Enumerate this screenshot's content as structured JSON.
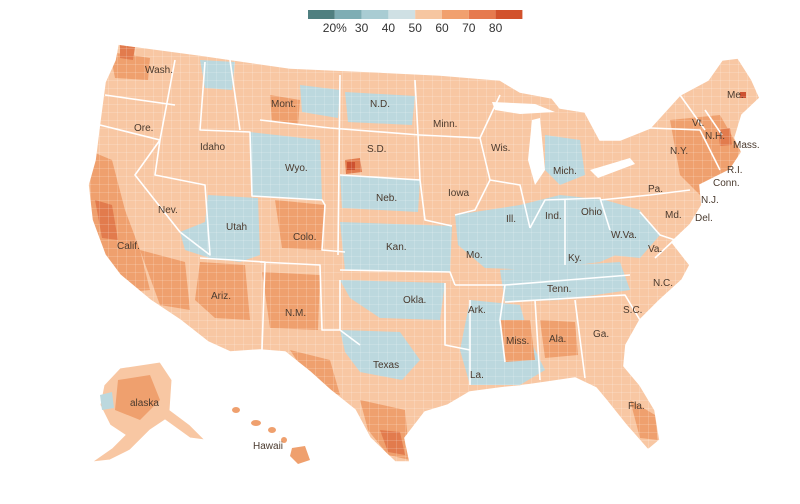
{
  "legend": {
    "ticks": [
      "20%",
      "30",
      "40",
      "50",
      "60",
      "70",
      "80"
    ],
    "colors": [
      "#4f7f80",
      "#7eadb4",
      "#a9ccd3",
      "#cfe0e4",
      "#f6c6a1",
      "#f1a06e",
      "#e67a4e",
      "#d2522c"
    ]
  },
  "map_colors": {
    "base": "#f8c7a3",
    "blue": "#bcd8de",
    "orange": "#efa06e",
    "dark_orange": "#e27b4d",
    "red": "#cd5130",
    "border": "#ffffff"
  },
  "state_labels": {
    "wash": "Wash.",
    "ore": "Ore.",
    "calif": "Calif.",
    "nev": "Nev.",
    "idaho": "Idaho",
    "mont": "Mont.",
    "wyo": "Wyo.",
    "utah": "Utah",
    "ariz": "Ariz.",
    "colo": "Colo.",
    "nm": "N.M.",
    "nd": "N.D.",
    "sd": "S.D.",
    "neb": "Neb.",
    "kan": "Kan.",
    "okla": "Okla.",
    "texas": "Texas",
    "minn": "Minn.",
    "iowa": "Iowa",
    "mo": "Mo.",
    "ark": "Ark.",
    "la": "La.",
    "wis": "Wis.",
    "ill": "Ill.",
    "mich": "Mich.",
    "ind": "Ind.",
    "ohio": "Ohio",
    "ky": "Ky.",
    "tenn": "Tenn.",
    "miss": "Miss.",
    "ala": "Ala.",
    "ga": "Ga.",
    "fla": "Fla.",
    "sc": "S.C.",
    "nc": "N.C.",
    "va": "Va.",
    "wva": "W.Va.",
    "pa": "Pa.",
    "ny": "N.Y.",
    "vt": "Vt.",
    "nh": "N.H.",
    "me": "Me.",
    "mass": "Mass.",
    "ri": "R.I.",
    "conn": "Conn.",
    "nj": "N.J.",
    "md": "Md.",
    "del": "Del.",
    "alaska": "alaska",
    "hawaii": "Hawaii"
  }
}
